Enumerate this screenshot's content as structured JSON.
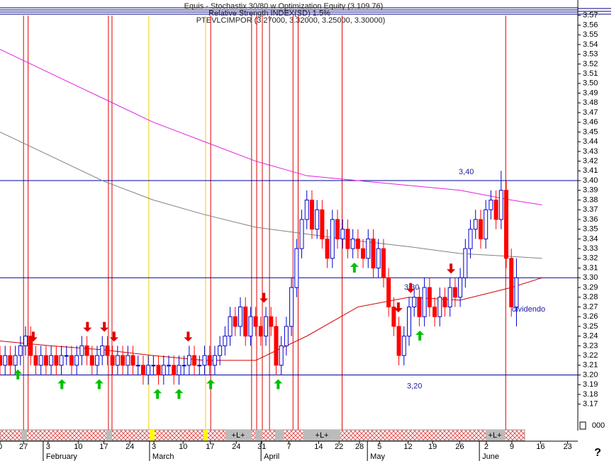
{
  "chart_data": {
    "type": "candlestick",
    "header_lines": [
      "Equis - Stochastix 30/80 w Optimization Equity (3.109.76)",
      "Relative Strength INDEX(SD) 1.5%",
      "PTEVLCIMPOR (3.27000, 3.32000, 3.25000, 3.30000)"
    ],
    "ylim": [
      3.145,
      3.58
    ],
    "yticks": [
      3.17,
      3.18,
      3.19,
      {
        "value": 3.2,
        "label": "3.20"
      },
      3.21,
      3.22,
      3.23,
      3.24,
      3.25,
      3.26,
      3.27,
      3.28,
      3.29,
      {
        "value": 3.3,
        "label": "3.30"
      },
      3.31,
      3.32,
      3.33,
      3.34,
      3.35,
      3.36,
      3.37,
      3.38,
      3.39,
      {
        "value": 3.4,
        "label": "3.40"
      },
      3.41,
      3.42,
      3.43,
      3.44,
      3.45,
      3.46,
      3.47,
      3.48,
      3.49,
      {
        "value": 3.5,
        "label": "3.50"
      },
      3.51,
      3.52,
      3.53,
      3.54,
      3.55,
      3.56,
      3.57
    ],
    "xlim": [
      0,
      113
    ],
    "xticks": [
      {
        "value": 0,
        "label": "0"
      },
      {
        "value": 4.6,
        "label": "27"
      },
      {
        "value": 9.4,
        "label": "3"
      },
      {
        "value": 15.3,
        "label": "10"
      },
      {
        "value": 20.3,
        "label": "17"
      },
      {
        "value": 25.4,
        "label": "24"
      },
      {
        "value": 30.1,
        "label": "3"
      },
      {
        "value": 35.8,
        "label": "10"
      },
      {
        "value": 41.1,
        "label": "17"
      },
      {
        "value": 46.2,
        "label": "24"
      },
      {
        "value": 51.2,
        "label": "31"
      },
      {
        "value": 56.5,
        "label": "7"
      },
      {
        "value": 62.3,
        "label": "14"
      },
      {
        "value": 66.3,
        "label": "22"
      },
      {
        "value": 70.3,
        "label": "28"
      },
      {
        "value": 74.2,
        "label": "5"
      },
      {
        "value": 79.8,
        "label": "12"
      },
      {
        "value": 84.6,
        "label": "19"
      },
      {
        "value": 89.9,
        "label": "26"
      },
      {
        "value": 95.1,
        "label": "2"
      },
      {
        "value": 100.1,
        "label": "9"
      },
      {
        "value": 105.7,
        "label": "16"
      },
      {
        "value": 111,
        "label": "23"
      }
    ],
    "month_ticks": [
      {
        "value": 9,
        "label": "February"
      },
      {
        "value": 29.8,
        "label": "March"
      },
      {
        "value": 51.6,
        "label": "April"
      },
      {
        "value": 72.4,
        "label": "May"
      },
      {
        "value": 94.3,
        "label": "June"
      }
    ],
    "up_color": "#0000cc",
    "down_color": "#ff0000",
    "x": [
      0,
      1,
      2,
      3,
      4,
      5,
      6,
      7,
      8,
      9,
      10,
      11,
      12,
      13,
      14,
      15,
      16,
      17,
      18,
      19,
      20,
      21,
      22,
      23,
      24,
      25,
      26,
      27,
      28,
      29,
      30,
      31,
      32,
      33,
      34,
      35,
      36,
      37,
      38,
      39,
      40,
      41,
      42,
      43,
      44,
      45,
      46,
      47,
      48,
      49,
      50,
      51,
      52,
      53,
      54,
      55,
      56,
      57,
      58,
      59,
      60,
      61,
      62,
      63,
      64,
      65,
      66,
      67,
      68,
      69,
      70,
      71,
      72,
      73,
      74,
      75,
      76,
      77,
      78,
      79,
      80,
      81,
      82,
      83,
      84,
      85,
      86,
      87,
      88,
      89,
      90,
      91,
      92,
      93,
      94,
      95,
      96,
      97,
      98,
      99,
      100,
      101
    ],
    "open": [
      3.22,
      3.21,
      3.22,
      3.21,
      3.22,
      3.23,
      3.24,
      3.22,
      3.21,
      3.22,
      3.21,
      3.22,
      3.21,
      3.22,
      3.22,
      3.21,
      3.22,
      3.23,
      3.22,
      3.21,
      3.22,
      3.23,
      3.22,
      3.21,
      3.22,
      3.21,
      3.22,
      3.21,
      3.21,
      3.2,
      3.21,
      3.21,
      3.2,
      3.21,
      3.21,
      3.2,
      3.21,
      3.21,
      3.22,
      3.21,
      3.21,
      3.22,
      3.21,
      3.22,
      3.23,
      3.24,
      3.26,
      3.25,
      3.27,
      3.24,
      3.26,
      3.25,
      3.24,
      3.26,
      3.25,
      3.21,
      3.23,
      3.25,
      3.29,
      3.33,
      3.36,
      3.38,
      3.35,
      3.37,
      3.34,
      3.32,
      3.36,
      3.34,
      3.35,
      3.33,
      3.34,
      3.33,
      3.32,
      3.34,
      3.31,
      3.33,
      3.3,
      3.27,
      3.25,
      3.22,
      3.24,
      3.27,
      3.28,
      3.26,
      3.29,
      3.27,
      3.26,
      3.28,
      3.27,
      3.29,
      3.28,
      3.3,
      3.33,
      3.35,
      3.36,
      3.34,
      3.37,
      3.38,
      3.36,
      3.39,
      3.32,
      3.27
    ],
    "high": [
      3.23,
      3.23,
      3.23,
      3.23,
      3.24,
      3.25,
      3.25,
      3.23,
      3.23,
      3.23,
      3.23,
      3.23,
      3.23,
      3.23,
      3.23,
      3.23,
      3.24,
      3.24,
      3.23,
      3.23,
      3.24,
      3.24,
      3.23,
      3.23,
      3.23,
      3.23,
      3.23,
      3.22,
      3.22,
      3.22,
      3.22,
      3.22,
      3.22,
      3.22,
      3.22,
      3.22,
      3.22,
      3.23,
      3.23,
      3.22,
      3.23,
      3.23,
      3.23,
      3.24,
      3.25,
      3.27,
      3.27,
      3.28,
      3.28,
      3.27,
      3.27,
      3.26,
      3.27,
      3.27,
      3.26,
      3.24,
      3.26,
      3.3,
      3.34,
      3.37,
      3.39,
      3.39,
      3.38,
      3.38,
      3.35,
      3.37,
      3.37,
      3.36,
      3.36,
      3.35,
      3.35,
      3.34,
      3.35,
      3.35,
      3.34,
      3.34,
      3.31,
      3.28,
      3.26,
      3.25,
      3.28,
      3.29,
      3.29,
      3.3,
      3.3,
      3.28,
      3.29,
      3.29,
      3.3,
      3.3,
      3.31,
      3.34,
      3.36,
      3.37,
      3.37,
      3.38,
      3.39,
      3.39,
      3.41,
      3.4,
      3.33,
      3.32
    ],
    "low": [
      3.2,
      3.2,
      3.2,
      3.2,
      3.21,
      3.22,
      3.21,
      3.2,
      3.2,
      3.2,
      3.2,
      3.2,
      3.2,
      3.21,
      3.2,
      3.2,
      3.21,
      3.21,
      3.2,
      3.2,
      3.21,
      3.21,
      3.2,
      3.2,
      3.2,
      3.2,
      3.2,
      3.2,
      3.19,
      3.19,
      3.2,
      3.19,
      3.19,
      3.2,
      3.19,
      3.19,
      3.2,
      3.2,
      3.2,
      3.2,
      3.2,
      3.2,
      3.2,
      3.21,
      3.22,
      3.23,
      3.24,
      3.24,
      3.23,
      3.23,
      3.24,
      3.23,
      3.23,
      3.24,
      3.2,
      3.2,
      3.22,
      3.24,
      3.28,
      3.32,
      3.35,
      3.34,
      3.34,
      3.33,
      3.31,
      3.31,
      3.33,
      3.33,
      3.32,
      3.32,
      3.32,
      3.31,
      3.31,
      3.3,
      3.3,
      3.29,
      3.26,
      3.24,
      3.21,
      3.21,
      3.23,
      3.26,
      3.25,
      3.25,
      3.26,
      3.25,
      3.25,
      3.26,
      3.26,
      3.27,
      3.27,
      3.29,
      3.32,
      3.34,
      3.33,
      3.33,
      3.36,
      3.35,
      3.35,
      3.31,
      3.26,
      3.25
    ],
    "close": [
      3.21,
      3.22,
      3.21,
      3.22,
      3.23,
      3.24,
      3.22,
      3.21,
      3.22,
      3.21,
      3.22,
      3.21,
      3.22,
      3.22,
      3.21,
      3.22,
      3.23,
      3.22,
      3.21,
      3.22,
      3.23,
      3.22,
      3.21,
      3.22,
      3.21,
      3.22,
      3.21,
      3.21,
      3.2,
      3.21,
      3.21,
      3.2,
      3.21,
      3.21,
      3.2,
      3.21,
      3.21,
      3.22,
      3.21,
      3.21,
      3.22,
      3.21,
      3.22,
      3.23,
      3.24,
      3.26,
      3.25,
      3.27,
      3.24,
      3.26,
      3.25,
      3.24,
      3.26,
      3.25,
      3.21,
      3.23,
      3.25,
      3.29,
      3.33,
      3.36,
      3.38,
      3.35,
      3.37,
      3.34,
      3.32,
      3.36,
      3.34,
      3.35,
      3.33,
      3.34,
      3.33,
      3.32,
      3.34,
      3.31,
      3.33,
      3.3,
      3.27,
      3.25,
      3.22,
      3.24,
      3.27,
      3.28,
      3.26,
      3.29,
      3.27,
      3.26,
      3.28,
      3.27,
      3.29,
      3.28,
      3.3,
      3.33,
      3.35,
      3.36,
      3.34,
      3.37,
      3.38,
      3.36,
      3.39,
      3.32,
      3.27,
      3.3
    ],
    "lines": [
      {
        "color": "#e020e0",
        "x": [
          0,
          10,
          20,
          30,
          40,
          50,
          60,
          70,
          80,
          90,
          100,
          106
        ],
        "values": [
          3.535,
          3.51,
          3.485,
          3.46,
          3.44,
          3.42,
          3.405,
          3.4,
          3.395,
          3.39,
          3.38,
          3.375
        ]
      },
      {
        "color": "#808080",
        "x": [
          0,
          10,
          20,
          30,
          40,
          50,
          60,
          70,
          80,
          90,
          100,
          106
        ],
        "values": [
          3.45,
          3.425,
          3.4,
          3.38,
          3.365,
          3.352,
          3.345,
          3.338,
          3.332,
          3.325,
          3.322,
          3.32
        ]
      },
      {
        "color": "#d00000",
        "x": [
          0,
          10,
          20,
          30,
          40,
          50,
          60,
          70,
          80,
          90,
          100,
          106
        ],
        "values": [
          3.235,
          3.23,
          3.226,
          3.22,
          3.215,
          3.215,
          3.24,
          3.27,
          3.28,
          3.277,
          3.29,
          3.3
        ]
      }
    ],
    "hlines": [
      {
        "value": 3.4,
        "label": "3,40"
      },
      {
        "value": 3.3,
        "label": "3,30"
      },
      {
        "value": 3.2,
        "label": "3,20"
      }
    ],
    "red_vlines": [
      4.6,
      5.5,
      21.2,
      21.9,
      41.2,
      49.2,
      50.2,
      51.3,
      52.7,
      57.3,
      58.3,
      66.9,
      98.9
    ],
    "yellow_vlines": [
      29.1,
      40.2
    ],
    "buy_signals": [
      3.5,
      12.1,
      19.4,
      30.8,
      35,
      41.2,
      54.4,
      69.3,
      82.1
    ],
    "sell_signals": [
      6.5,
      17.1,
      20.4,
      22.3,
      36.8,
      51.6,
      77.9,
      80.3,
      88.2
    ],
    "annotation": "dividendo",
    "strip_labels": [
      "+L+",
      "+L+",
      "+L+"
    ],
    "volume_label": "000",
    "help_label": "?"
  }
}
